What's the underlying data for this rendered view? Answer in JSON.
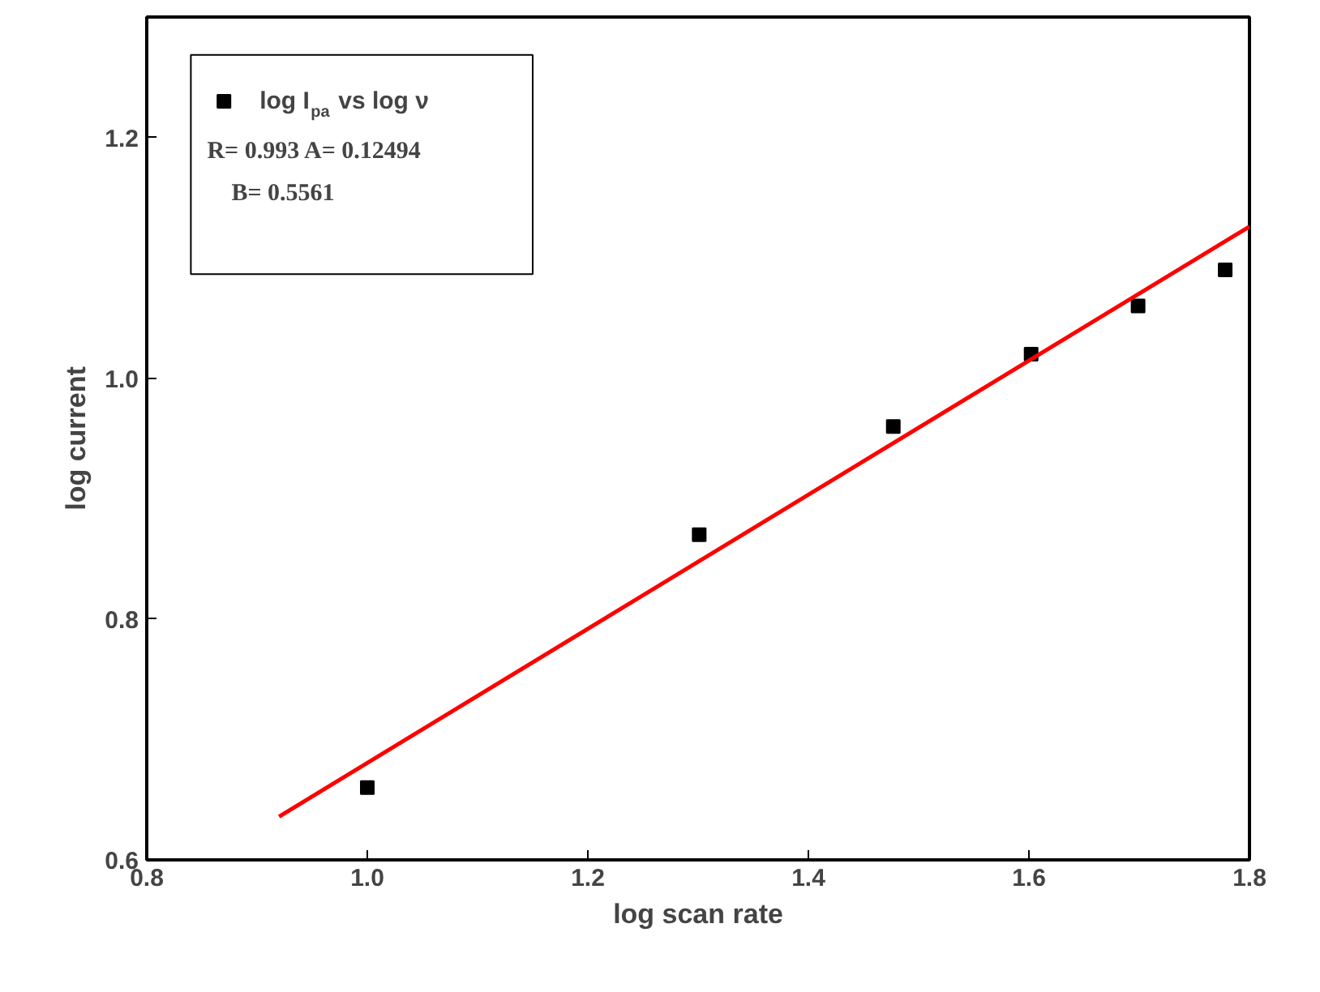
{
  "chart_data": {
    "type": "scatter",
    "xlabel": "log scan rate",
    "ylabel": "log current",
    "x": [
      1.0,
      1.301,
      1.477,
      1.602,
      1.699,
      1.778
    ],
    "series": [
      {
        "name": "log I$_{pa}$ vs log ν",
        "marker": "square",
        "color": "#000000",
        "values": [
          0.66,
          0.87,
          0.96,
          1.02,
          1.06,
          1.09
        ]
      },
      {
        "type": "line",
        "color": "#ff0000",
        "x": [
          0.92,
          1.8
        ],
        "values": [
          0.636,
          1.126
        ]
      }
    ],
    "annotations": [
      "R= 0.993 A= 0.12494",
      "B= 0.5561"
    ],
    "xlim": [
      0.8,
      1.8
    ],
    "ylim": [
      0.6,
      1.3
    ],
    "xticks": [
      0.8,
      {
        "value": 1,
        "label": "1.0"
      },
      1.2,
      1.4,
      1.6,
      1.8
    ],
    "yticks": [
      0.6,
      0.8,
      {
        "value": 1,
        "label": "1.0"
      },
      1.2
    ],
    "grid": false,
    "legend": "top left"
  }
}
